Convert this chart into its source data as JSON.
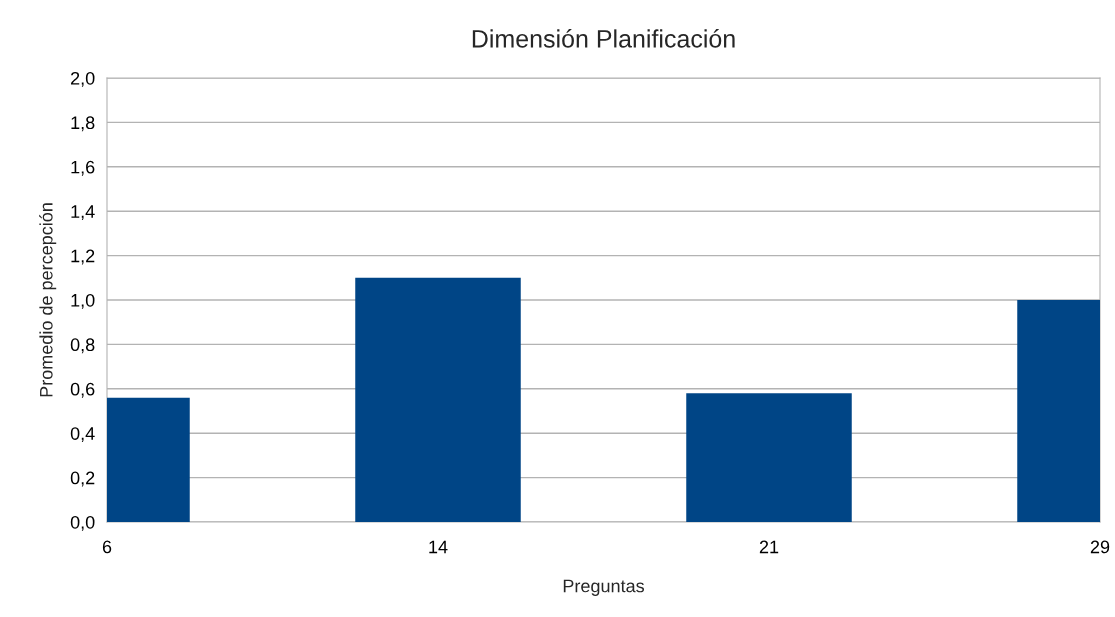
{
  "chart_data": {
    "type": "bar",
    "title": "Dimensión Planificación",
    "xlabel": "Preguntas",
    "ylabel": "Promedio de percepción",
    "categories": [
      "6",
      "14",
      "21",
      "29"
    ],
    "values": [
      0.56,
      1.1,
      0.58,
      1.0
    ],
    "color": "#004586",
    "ylim": [
      0,
      2.0
    ],
    "yticks": [
      {
        "value": 0,
        "label": "0,0"
      },
      {
        "value": 0.2,
        "label": "0,2"
      },
      {
        "value": 0.4,
        "label": "0,4"
      },
      {
        "value": 0.6,
        "label": "0,6"
      },
      {
        "value": 0.8,
        "label": "0,8"
      },
      {
        "value": 1.0,
        "label": "1,0"
      },
      {
        "value": 1.2,
        "label": "1,2"
      },
      {
        "value": 1.4,
        "label": "1,4"
      },
      {
        "value": 1.6,
        "label": "1,6"
      },
      {
        "value": 1.8,
        "label": "1,8"
      },
      {
        "value": 2.0,
        "label": "2,0"
      }
    ],
    "grid": "y",
    "legend": false
  }
}
